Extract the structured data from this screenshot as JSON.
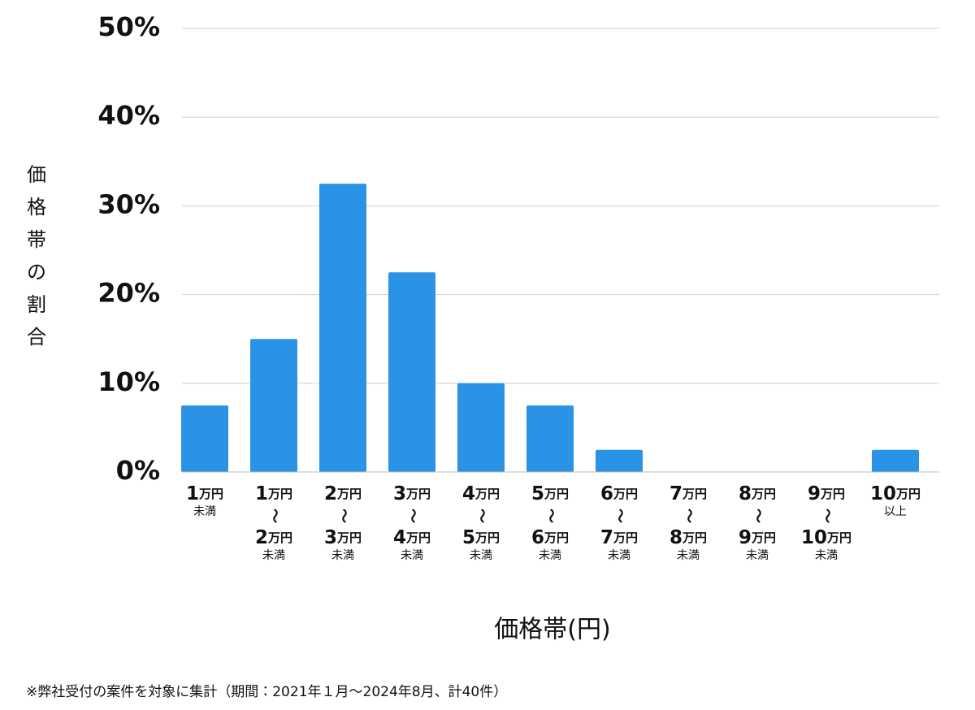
{
  "chart_data": {
    "type": "bar",
    "y_label": "価格帯の割合",
    "x_label": "価格帯(円)",
    "footnote": "※弊社受付の案件を対象に集計（期間：2021年１月〜2024年8月、計40件）",
    "categories": [
      [
        "1万円",
        "未満"
      ],
      [
        "1万円",
        "〜",
        "2万円",
        "未満"
      ],
      [
        "2万円",
        "〜",
        "3万円",
        "未満"
      ],
      [
        "3万円",
        "〜",
        "4万円",
        "未満"
      ],
      [
        "4万円",
        "〜",
        "5万円",
        "未満"
      ],
      [
        "5万円",
        "〜",
        "6万円",
        "未満"
      ],
      [
        "6万円",
        "〜",
        "7万円",
        "未満"
      ],
      [
        "7万円",
        "〜",
        "8万円",
        "未満"
      ],
      [
        "8万円",
        "〜",
        "9万円",
        "未満"
      ],
      [
        "9万円",
        "〜",
        "10万円",
        "未満"
      ],
      [
        "10万円",
        "以上"
      ]
    ],
    "values": [
      7.5,
      15,
      32.5,
      22.5,
      10,
      7.5,
      2.5,
      0,
      0,
      0,
      2.5
    ],
    "color": "#2b93e6",
    "ylim": [
      0,
      50
    ],
    "yticks": [
      {
        "value": 0,
        "label": "0%"
      },
      {
        "value": 10,
        "label": "10%"
      },
      {
        "value": 20,
        "label": "20%"
      },
      {
        "value": 30,
        "label": "30%"
      },
      {
        "value": 40,
        "label": "40%"
      },
      {
        "value": 50,
        "label": "50%"
      }
    ],
    "grid": true
  }
}
